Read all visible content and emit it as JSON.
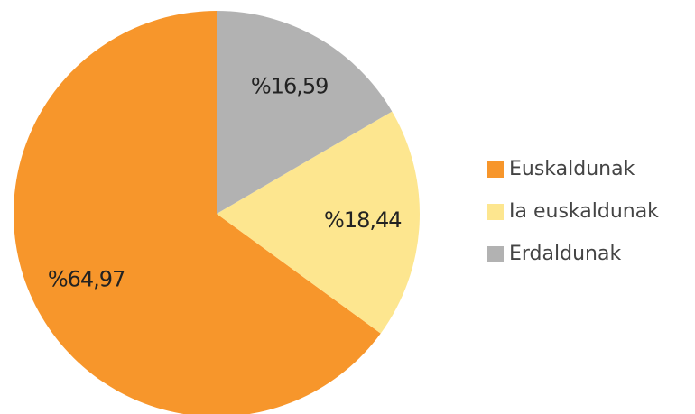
{
  "chart_data": {
    "type": "pie",
    "categories": [
      "Euskaldunak",
      "Ia euskaldunak",
      "Erdaldunak"
    ],
    "values": [
      64.97,
      18.44,
      16.59
    ],
    "value_labels": [
      "%64,97",
      "%18,44",
      "%16,59"
    ],
    "colors": [
      "#f7962b",
      "#fde68f",
      "#b2b2b2"
    ],
    "legend": "right"
  }
}
